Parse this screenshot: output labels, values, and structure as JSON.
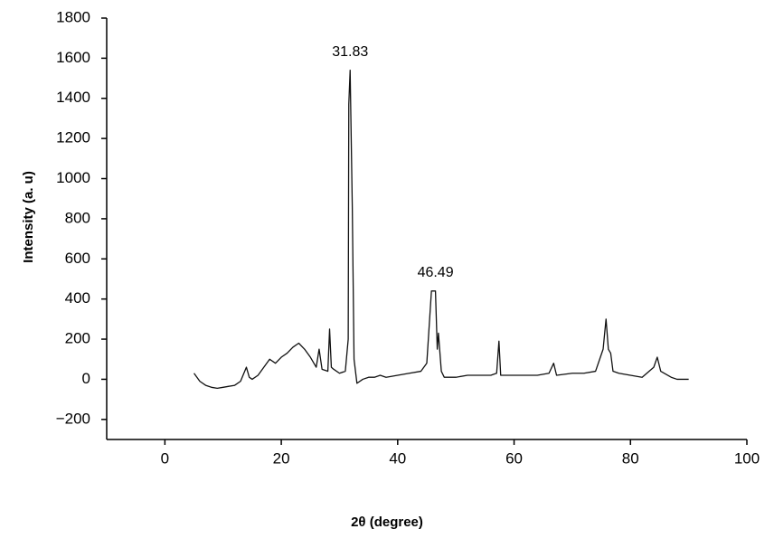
{
  "chart_data": {
    "type": "line",
    "x_label": "2θ (degree)",
    "y_label": "Intensity (a. u)",
    "color": "#111111",
    "x": [
      5,
      6,
      7,
      8,
      9,
      10,
      11,
      12,
      13,
      14,
      14.5,
      15,
      16,
      17,
      18,
      19,
      20,
      21,
      22,
      23,
      24,
      25,
      26,
      26.5,
      27,
      28,
      28.3,
      28.6,
      29,
      30,
      31,
      31.5,
      31.6,
      31.83,
      32.2,
      32.5,
      33,
      34,
      35,
      36,
      37,
      38,
      40,
      42,
      44,
      45,
      45.8,
      46.49,
      46.8,
      47,
      47.5,
      48,
      50,
      52,
      54,
      56,
      57,
      57.4,
      57.7,
      60,
      62,
      64,
      66,
      66.8,
      67.3,
      70,
      72,
      74,
      75.3,
      75.8,
      76.2,
      76.6,
      77,
      78,
      80,
      82,
      84,
      84.6,
      85.2,
      87,
      88,
      90
    ],
    "values": [
      30,
      -10,
      -30,
      -40,
      -45,
      -40,
      -35,
      -30,
      -10,
      60,
      10,
      0,
      20,
      60,
      100,
      80,
      110,
      130,
      160,
      180,
      150,
      110,
      60,
      150,
      50,
      40,
      250,
      60,
      50,
      30,
      40,
      200,
      1370,
      1540,
      860,
      100,
      -20,
      0,
      10,
      10,
      20,
      10,
      20,
      30,
      40,
      80,
      440,
      440,
      150,
      230,
      40,
      10,
      10,
      20,
      20,
      20,
      30,
      190,
      20,
      20,
      20,
      20,
      30,
      80,
      20,
      30,
      30,
      40,
      150,
      300,
      150,
      130,
      40,
      30,
      20,
      10,
      60,
      110,
      40,
      10,
      0,
      0
    ],
    "annotations": [
      {
        "text": "31.83",
        "x": 31.83,
        "y": 1540
      },
      {
        "text": "46.49",
        "x": 46.49,
        "y": 440
      }
    ],
    "xlim": [
      -10,
      100
    ],
    "xticks": [
      0,
      20,
      40,
      60,
      80,
      100
    ],
    "ylim": [
      -300,
      1800
    ],
    "yticks": [
      {
        "value": -200,
        "label": "−200"
      },
      0,
      200,
      400,
      600,
      800,
      1000,
      1200,
      1400,
      1600,
      1800
    ]
  }
}
